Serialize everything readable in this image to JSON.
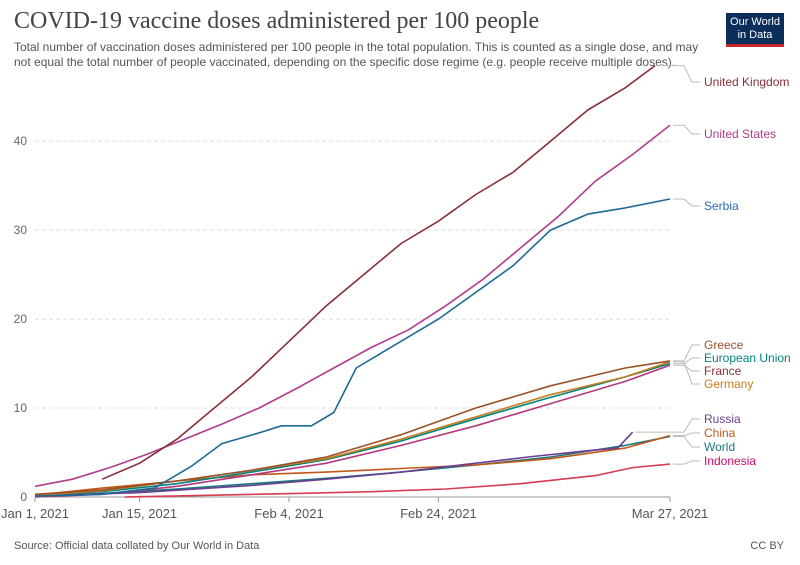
{
  "header": {
    "title": "COVID-19 vaccine doses administered per 100 people",
    "subtitle": "Total number of vaccination doses administered per 100 people in the total population. This is counted as a single dose, and may not equal the total number of people vaccinated, depending on the specific dose regime (e.g. people receive multiple doses).",
    "logo_line1": "Our World",
    "logo_line2": "in Data"
  },
  "footer": {
    "source": "Source: Official data collated by Our World in Data",
    "license": "CC BY"
  },
  "chart_data": {
    "type": "line",
    "title": "COVID-19 vaccine doses administered per 100 people",
    "xlabel": "",
    "ylabel": "",
    "x_range": [
      "2021-01-01",
      "2021-03-27"
    ],
    "ylim": [
      0,
      48
    ],
    "y_ticks": [
      0,
      10,
      20,
      30,
      40
    ],
    "x_tick_labels": [
      {
        "date": "2021-01-01",
        "label": "Jan 1, 2021"
      },
      {
        "date": "2021-01-15",
        "label": "Jan 15, 2021"
      },
      {
        "date": "2021-02-04",
        "label": "Feb 4, 2021"
      },
      {
        "date": "2021-02-24",
        "label": "Feb 24, 2021"
      },
      {
        "date": "2021-03-27",
        "label": "Mar 27, 2021"
      }
    ],
    "grid": "horizontal dashed",
    "legend": "end-of-line labels",
    "series": [
      {
        "name": "United Kingdom",
        "color": "#883039",
        "points": [
          [
            "2021-01-10",
            2.0
          ],
          [
            "2021-01-15",
            3.8
          ],
          [
            "2021-01-20",
            6.5
          ],
          [
            "2021-01-25",
            10.0
          ],
          [
            "2021-01-30",
            13.5
          ],
          [
            "2021-02-04",
            17.5
          ],
          [
            "2021-02-09",
            21.5
          ],
          [
            "2021-02-14",
            25.0
          ],
          [
            "2021-02-19",
            28.5
          ],
          [
            "2021-02-24",
            31.0
          ],
          [
            "2021-03-01",
            34.0
          ],
          [
            "2021-03-06",
            36.5
          ],
          [
            "2021-03-11",
            40.0
          ],
          [
            "2021-03-16",
            43.5
          ],
          [
            "2021-03-21",
            46.0
          ],
          [
            "2021-03-25",
            48.5
          ]
        ]
      },
      {
        "name": "United States",
        "color": "#b13c8c",
        "points": [
          [
            "2021-01-01",
            1.2
          ],
          [
            "2021-01-06",
            2.0
          ],
          [
            "2021-01-11",
            3.3
          ],
          [
            "2021-01-16",
            4.8
          ],
          [
            "2021-01-21",
            6.5
          ],
          [
            "2021-01-26",
            8.2
          ],
          [
            "2021-01-31",
            10.0
          ],
          [
            "2021-02-05",
            12.2
          ],
          [
            "2021-02-10",
            14.5
          ],
          [
            "2021-02-15",
            16.8
          ],
          [
            "2021-02-20",
            18.8
          ],
          [
            "2021-02-25",
            21.5
          ],
          [
            "2021-03-02",
            24.5
          ],
          [
            "2021-03-07",
            28.0
          ],
          [
            "2021-03-12",
            31.5
          ],
          [
            "2021-03-17",
            35.5
          ],
          [
            "2021-03-22",
            38.5
          ],
          [
            "2021-03-27",
            41.8
          ]
        ]
      },
      {
        "name": "Serbia",
        "color": "#286bbb",
        "line_color": "#1d6996",
        "points": [
          [
            "2021-01-01",
            0.1
          ],
          [
            "2021-01-10",
            0.3
          ],
          [
            "2021-01-17",
            1.0
          ],
          [
            "2021-01-22",
            3.5
          ],
          [
            "2021-01-26",
            6.0
          ],
          [
            "2021-01-31",
            7.2
          ],
          [
            "2021-02-03",
            8.0
          ],
          [
            "2021-02-07",
            8.0
          ],
          [
            "2021-02-10",
            9.5
          ],
          [
            "2021-02-13",
            14.5
          ],
          [
            "2021-02-17",
            16.5
          ],
          [
            "2021-02-24",
            20.0
          ],
          [
            "2021-03-01",
            23.0
          ],
          [
            "2021-03-06",
            26.0
          ],
          [
            "2021-03-11",
            30.0
          ],
          [
            "2021-03-16",
            31.8
          ],
          [
            "2021-03-21",
            32.5
          ],
          [
            "2021-03-27",
            33.5
          ]
        ]
      },
      {
        "name": "Greece",
        "color": "#a2559c",
        "line_color": "#9a5129",
        "points": [
          [
            "2021-01-01",
            0.3
          ],
          [
            "2021-01-10",
            0.8
          ],
          [
            "2021-01-20",
            1.8
          ],
          [
            "2021-01-30",
            3.0
          ],
          [
            "2021-02-09",
            4.5
          ],
          [
            "2021-02-19",
            7.0
          ],
          [
            "2021-03-01",
            10.0
          ],
          [
            "2021-03-11",
            12.5
          ],
          [
            "2021-03-21",
            14.5
          ],
          [
            "2021-03-27",
            15.3
          ]
        ]
      },
      {
        "name": "European Union",
        "color": "#00847e",
        "points": [
          [
            "2021-01-01",
            0.2
          ],
          [
            "2021-01-10",
            0.6
          ],
          [
            "2021-01-20",
            1.5
          ],
          [
            "2021-01-30",
            2.8
          ],
          [
            "2021-02-09",
            4.2
          ],
          [
            "2021-02-19",
            6.3
          ],
          [
            "2021-03-01",
            8.8
          ],
          [
            "2021-03-11",
            11.2
          ],
          [
            "2021-03-21",
            13.5
          ],
          [
            "2021-03-27",
            15.0
          ]
        ]
      },
      {
        "name": "France",
        "color": "#883039",
        "line_color": "#b3397f",
        "points": [
          [
            "2021-01-01",
            0.0
          ],
          [
            "2021-01-10",
            0.3
          ],
          [
            "2021-01-20",
            1.2
          ],
          [
            "2021-01-30",
            2.5
          ],
          [
            "2021-02-09",
            3.8
          ],
          [
            "2021-02-19",
            5.8
          ],
          [
            "2021-03-01",
            8.0
          ],
          [
            "2021-03-11",
            10.5
          ],
          [
            "2021-03-21",
            13.0
          ],
          [
            "2021-03-27",
            14.8
          ]
        ]
      },
      {
        "name": "Germany",
        "color": "#c15065",
        "line_color": "#c77c1f",
        "points": [
          [
            "2021-01-01",
            0.2
          ],
          [
            "2021-01-10",
            0.7
          ],
          [
            "2021-01-20",
            1.8
          ],
          [
            "2021-01-30",
            3.0
          ],
          [
            "2021-02-09",
            4.3
          ],
          [
            "2021-02-19",
            6.5
          ],
          [
            "2021-03-01",
            9.0
          ],
          [
            "2021-03-11",
            11.5
          ],
          [
            "2021-03-21",
            13.5
          ],
          [
            "2021-03-27",
            15.2
          ]
        ]
      },
      {
        "name": "Russia",
        "color": "#6d3e91",
        "points": [
          [
            "2021-01-01",
            0.1
          ],
          [
            "2021-01-15",
            0.5
          ],
          [
            "2021-01-30",
            1.3
          ],
          [
            "2021-02-09",
            2.0
          ],
          [
            "2021-02-19",
            2.8
          ],
          [
            "2021-03-01",
            3.8
          ],
          [
            "2021-03-08",
            4.5
          ],
          [
            "2021-03-16",
            5.2
          ],
          [
            "2021-03-20",
            5.5
          ],
          [
            "2021-03-22",
            7.3
          ]
        ]
      },
      {
        "name": "China",
        "color": "#c05917",
        "points": [
          [
            "2021-01-01",
            0.2
          ],
          [
            "2021-01-10",
            1.0
          ],
          [
            "2021-01-20",
            1.8
          ],
          [
            "2021-01-30",
            2.5
          ],
          [
            "2021-02-09",
            2.8
          ],
          [
            "2021-02-19",
            3.2
          ],
          [
            "2021-03-01",
            3.6
          ],
          [
            "2021-03-11",
            4.3
          ],
          [
            "2021-03-21",
            5.5
          ],
          [
            "2021-03-27",
            6.9
          ]
        ]
      },
      {
        "name": "World",
        "color": "#58ac8c",
        "line_color": "#18777f",
        "points": [
          [
            "2021-01-01",
            0.1
          ],
          [
            "2021-01-10",
            0.4
          ],
          [
            "2021-01-20",
            0.9
          ],
          [
            "2021-01-30",
            1.5
          ],
          [
            "2021-02-09",
            2.1
          ],
          [
            "2021-02-19",
            2.8
          ],
          [
            "2021-03-01",
            3.6
          ],
          [
            "2021-03-11",
            4.5
          ],
          [
            "2021-03-21",
            5.8
          ],
          [
            "2021-03-27",
            6.8
          ]
        ]
      },
      {
        "name": "Indonesia",
        "color": "#cf0a66",
        "line_color": "#d73c50",
        "points": [
          [
            "2021-01-13",
            0.0
          ],
          [
            "2021-01-25",
            0.2
          ],
          [
            "2021-02-05",
            0.4
          ],
          [
            "2021-02-15",
            0.6
          ],
          [
            "2021-02-25",
            0.9
          ],
          [
            "2021-03-07",
            1.5
          ],
          [
            "2021-03-17",
            2.4
          ],
          [
            "2021-03-22",
            3.3
          ],
          [
            "2021-03-27",
            3.7
          ]
        ]
      }
    ]
  },
  "label_colors": {
    "United Kingdom": "#883039",
    "United States": "#b13c8c",
    "Serbia": "#286bbb",
    "Greece": "#9a5129",
    "European Union": "#00847e",
    "France": "#883039",
    "Germany": "#c77c1f",
    "Russia": "#6d3e91",
    "China": "#c05917",
    "World": "#18777f",
    "Indonesia": "#cf0a66"
  }
}
